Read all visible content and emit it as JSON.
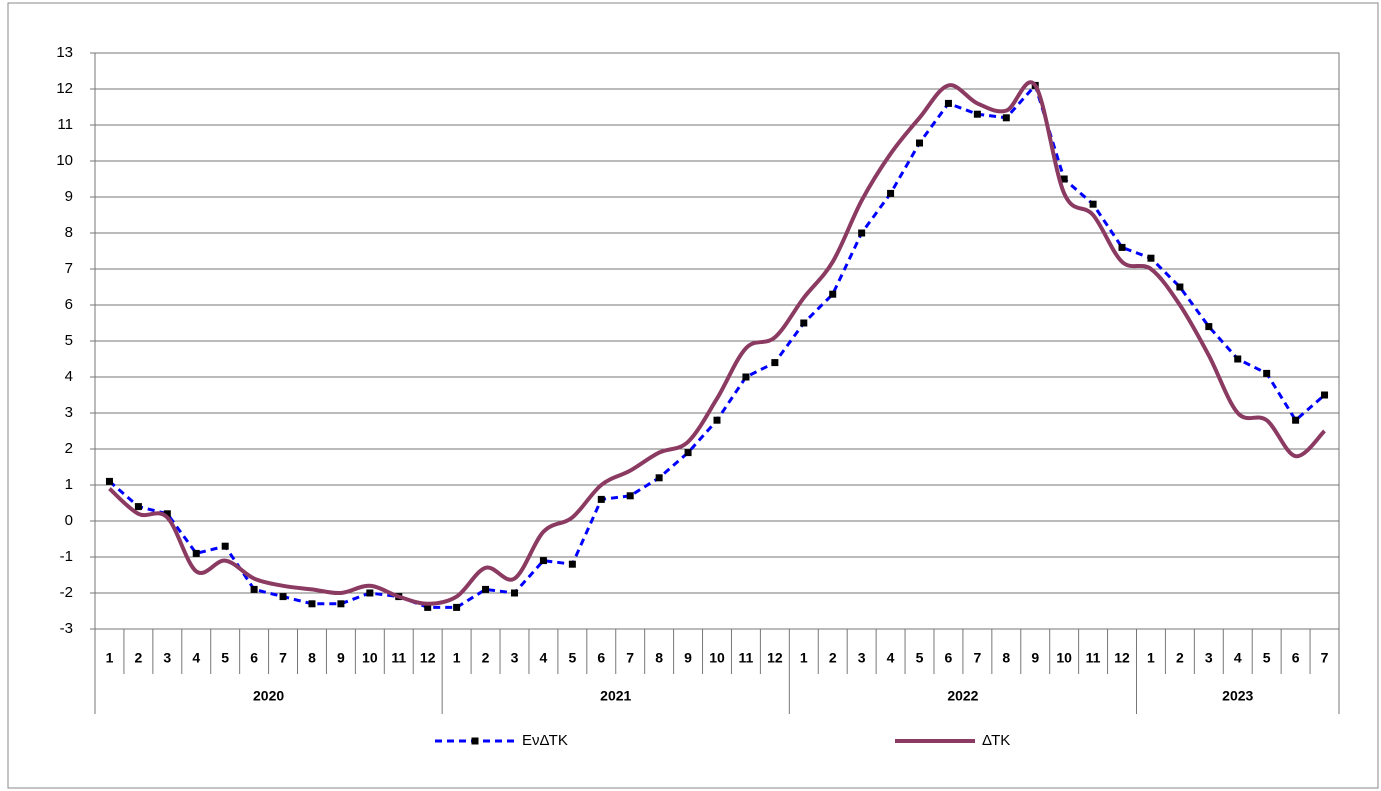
{
  "chart_data": {
    "type": "line",
    "category_groups": [
      {
        "label": "2020",
        "categories": [
          "1",
          "2",
          "3",
          "4",
          "5",
          "6",
          "7",
          "8",
          "9",
          "10",
          "11",
          "12"
        ]
      },
      {
        "label": "2021",
        "categories": [
          "1",
          "2",
          "3",
          "4",
          "5",
          "6",
          "7",
          "8",
          "9",
          "10",
          "11",
          "12"
        ]
      },
      {
        "label": "2022",
        "categories": [
          "1",
          "2",
          "3",
          "4",
          "5",
          "6",
          "7",
          "8",
          "9",
          "10",
          "11",
          "12"
        ]
      },
      {
        "label": "2023",
        "categories": [
          "1",
          "2",
          "3",
          "4",
          "5",
          "6",
          "7"
        ]
      }
    ],
    "series": [
      {
        "name": "ΕνΔΤΚ",
        "color": "#0000ff",
        "dashed": true,
        "marker": "square",
        "marker_color": "#000000",
        "smooth": false,
        "values": [
          1.1,
          0.4,
          0.2,
          -0.9,
          -0.7,
          -1.9,
          -2.1,
          -2.3,
          -2.3,
          -2.0,
          -2.1,
          -2.4,
          -2.4,
          -1.9,
          -2.0,
          -1.1,
          -1.2,
          0.6,
          0.7,
          1.2,
          1.9,
          2.8,
          4.0,
          4.4,
          5.5,
          6.3,
          8.0,
          9.1,
          10.5,
          11.6,
          11.3,
          11.2,
          12.1,
          9.5,
          8.8,
          7.6,
          7.3,
          6.5,
          5.4,
          4.5,
          4.1,
          2.8,
          3.5
        ]
      },
      {
        "name": "ΔΤΚ",
        "color": "#8b3a62",
        "dashed": false,
        "marker": "none",
        "smooth": true,
        "values": [
          0.9,
          0.2,
          0.1,
          -1.4,
          -1.1,
          -1.6,
          -1.8,
          -1.9,
          -2.0,
          -1.8,
          -2.1,
          -2.3,
          -2.1,
          -1.3,
          -1.6,
          -0.3,
          0.1,
          1.0,
          1.4,
          1.9,
          2.2,
          3.4,
          4.8,
          5.1,
          6.2,
          7.2,
          8.9,
          10.2,
          11.2,
          12.1,
          11.6,
          11.4,
          12.1,
          9.1,
          8.5,
          7.2,
          7.0,
          6.0,
          4.6,
          3.0,
          2.8,
          1.8,
          2.5
        ]
      }
    ],
    "ylim": [
      -3,
      13
    ],
    "yticks": [
      -3,
      -2,
      -1,
      0,
      1,
      2,
      3,
      4,
      5,
      6,
      7,
      8,
      9,
      10,
      11,
      12,
      13
    ],
    "grid": true,
    "legend": "bottom"
  }
}
